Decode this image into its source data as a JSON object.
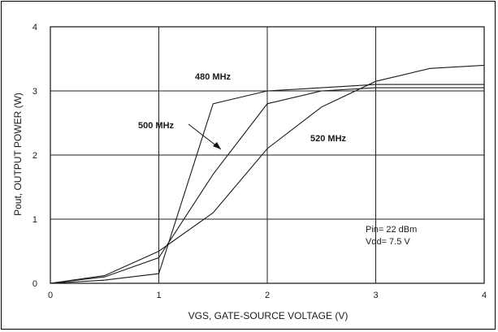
{
  "chart_data": {
    "type": "line",
    "xlabel": "VGS, GATE-SOURCE VOLTAGE (V)",
    "ylabel": "Pout, OUTPUT POWER (W)",
    "xlim": [
      0,
      4
    ],
    "ylim": [
      0,
      4
    ],
    "xticks": [
      "0",
      "1",
      "2",
      "3",
      "4"
    ],
    "yticks": [
      "0",
      "1",
      "2",
      "3",
      "4"
    ],
    "grid": true,
    "series": [
      {
        "name": "480 MHz",
        "x": [
          0,
          0.5,
          1.0,
          1.5,
          2.0,
          2.5,
          3.0,
          4.0
        ],
        "y": [
          0,
          0.05,
          0.15,
          2.8,
          3.0,
          3.05,
          3.1,
          3.1
        ]
      },
      {
        "name": "500 MHz",
        "x": [
          0,
          0.5,
          1.0,
          1.5,
          2.0,
          2.5,
          3.0,
          4.0
        ],
        "y": [
          0,
          0.1,
          0.4,
          1.7,
          2.8,
          3.0,
          3.05,
          3.05
        ]
      },
      {
        "name": "520 MHz",
        "x": [
          0,
          0.5,
          1.0,
          1.5,
          2.0,
          2.5,
          3.0,
          3.5,
          4.0
        ],
        "y": [
          0,
          0.12,
          0.5,
          1.1,
          2.1,
          2.75,
          3.15,
          3.35,
          3.4
        ]
      }
    ],
    "annotations": [
      "Pin= 22 dBm",
      "Vdd= 7.5 V"
    ]
  }
}
